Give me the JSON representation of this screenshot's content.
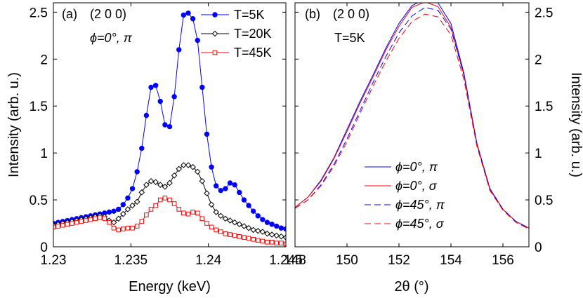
{
  "chart_data": [
    {
      "type": "line",
      "panel_label": "(a)",
      "annotations": [
        "(2 0 0)",
        "ϕ=0°, π"
      ],
      "xlabel": "Energy (keV)",
      "ylabel": "Intensity (arb. u.)",
      "xlim": [
        1.23,
        1.245
      ],
      "ylim": [
        0,
        2.6
      ],
      "xticks": [
        "1.23",
        "1.235",
        "1.24",
        "1.245"
      ],
      "yticks": [
        "0",
        "0.5",
        "1",
        "1.5",
        "2",
        "2.5"
      ],
      "legend_position": "top-right",
      "series": [
        {
          "name": "T=5K",
          "color": "#0000ff",
          "marker": "filled-circle",
          "x": [
            1.23,
            1.2303,
            1.2306,
            1.2309,
            1.2312,
            1.2315,
            1.2318,
            1.2321,
            1.2324,
            1.2327,
            1.233,
            1.2333,
            1.2336,
            1.2339,
            1.2342,
            1.2345,
            1.2348,
            1.2351,
            1.2354,
            1.2357,
            1.236,
            1.2363,
            1.2366,
            1.2369,
            1.2372,
            1.2375,
            1.2378,
            1.2381,
            1.2384,
            1.2387,
            1.239,
            1.2393,
            1.2396,
            1.2399,
            1.2402,
            1.2405,
            1.2408,
            1.2411,
            1.2414,
            1.2417,
            1.242,
            1.2423,
            1.2426,
            1.2429,
            1.2432,
            1.2435,
            1.2438,
            1.2441,
            1.2444,
            1.2447,
            1.245
          ],
          "y": [
            0.25,
            0.26,
            0.27,
            0.28,
            0.29,
            0.3,
            0.31,
            0.32,
            0.33,
            0.34,
            0.35,
            0.36,
            0.37,
            0.38,
            0.4,
            0.45,
            0.52,
            0.62,
            0.8,
            1.05,
            1.4,
            1.7,
            1.72,
            1.55,
            1.3,
            1.28,
            1.6,
            2.1,
            2.47,
            2.49,
            2.43,
            2.2,
            1.7,
            1.2,
            0.85,
            0.65,
            0.6,
            0.62,
            0.68,
            0.66,
            0.58,
            0.5,
            0.44,
            0.38,
            0.33,
            0.29,
            0.26,
            0.24,
            0.22,
            0.2,
            0.19
          ]
        },
        {
          "name": "T=20K",
          "color": "#000000",
          "marker": "open-diamond",
          "x": [
            1.23,
            1.2303,
            1.2306,
            1.2309,
            1.2312,
            1.2315,
            1.2318,
            1.2321,
            1.2324,
            1.2327,
            1.233,
            1.2333,
            1.2336,
            1.2339,
            1.2342,
            1.2345,
            1.2348,
            1.2351,
            1.2354,
            1.2357,
            1.236,
            1.2363,
            1.2366,
            1.2369,
            1.2372,
            1.2375,
            1.2378,
            1.2381,
            1.2384,
            1.2387,
            1.239,
            1.2393,
            1.2396,
            1.2399,
            1.2402,
            1.2405,
            1.2408,
            1.2411,
            1.2414,
            1.2417,
            1.242,
            1.2423,
            1.2426,
            1.2429,
            1.2432,
            1.2435,
            1.2438,
            1.2441,
            1.2444,
            1.2447,
            1.245
          ],
          "y": [
            0.23,
            0.24,
            0.25,
            0.26,
            0.27,
            0.28,
            0.29,
            0.3,
            0.31,
            0.32,
            0.33,
            0.32,
            0.28,
            0.26,
            0.3,
            0.35,
            0.4,
            0.44,
            0.48,
            0.58,
            0.66,
            0.7,
            0.69,
            0.66,
            0.64,
            0.68,
            0.76,
            0.83,
            0.87,
            0.87,
            0.85,
            0.8,
            0.7,
            0.57,
            0.45,
            0.37,
            0.33,
            0.3,
            0.28,
            0.26,
            0.24,
            0.22,
            0.2,
            0.18,
            0.17,
            0.16,
            0.14,
            0.13,
            0.12,
            0.11,
            0.1
          ]
        },
        {
          "name": "T=45K",
          "color": "#ff0000",
          "marker": "open-square",
          "x": [
            1.23,
            1.2303,
            1.2306,
            1.2309,
            1.2312,
            1.2315,
            1.2318,
            1.2321,
            1.2324,
            1.2327,
            1.233,
            1.2333,
            1.2336,
            1.2339,
            1.2342,
            1.2345,
            1.2348,
            1.2351,
            1.2354,
            1.2357,
            1.236,
            1.2363,
            1.2366,
            1.2369,
            1.2372,
            1.2375,
            1.2378,
            1.2381,
            1.2384,
            1.2387,
            1.239,
            1.2393,
            1.2396,
            1.2399,
            1.2402,
            1.2405,
            1.2408,
            1.2411,
            1.2414,
            1.2417,
            1.242,
            1.2423,
            1.2426,
            1.2429,
            1.2432,
            1.2435,
            1.2438,
            1.2441,
            1.2444,
            1.2447,
            1.245
          ],
          "y": [
            0.21,
            0.22,
            0.23,
            0.24,
            0.25,
            0.26,
            0.27,
            0.28,
            0.29,
            0.3,
            0.31,
            0.3,
            0.26,
            0.2,
            0.18,
            0.19,
            0.2,
            0.2,
            0.22,
            0.27,
            0.34,
            0.4,
            0.44,
            0.5,
            0.52,
            0.5,
            0.46,
            0.4,
            0.36,
            0.35,
            0.37,
            0.36,
            0.3,
            0.25,
            0.21,
            0.18,
            0.16,
            0.14,
            0.13,
            0.12,
            0.11,
            0.1,
            0.09,
            0.08,
            0.07,
            0.06,
            0.05,
            0.05,
            0.04,
            0.04,
            0.03
          ]
        }
      ]
    },
    {
      "type": "line",
      "panel_label": "(b)",
      "annotations": [
        "(2 0 0)",
        "T=5K"
      ],
      "xlabel": "2θ (°)",
      "ylabel": "Intensity (arb. u.)",
      "xlim": [
        148,
        157
      ],
      "ylim": [
        0,
        2.6
      ],
      "xticks": [
        "148",
        "150",
        "152",
        "154",
        "156"
      ],
      "yticks": [
        "0",
        "0.5",
        "1",
        "1.5",
        "2",
        "2.5"
      ],
      "yaxis_side": "right",
      "legend_position": "bottom-center",
      "series": [
        {
          "name": "ϕ=0°, π",
          "color": "#0000ff",
          "line_style": "solid",
          "x": [
            148,
            148.5,
            149,
            149.5,
            150,
            150.5,
            151,
            151.5,
            152,
            152.5,
            153,
            153.5,
            154,
            154.5,
            155,
            155.5,
            156,
            156.5,
            157
          ],
          "y": [
            0.42,
            0.53,
            0.71,
            0.95,
            1.25,
            1.55,
            1.83,
            2.12,
            2.38,
            2.57,
            2.64,
            2.6,
            2.38,
            1.85,
            1.1,
            0.62,
            0.4,
            0.27,
            0.2
          ]
        },
        {
          "name": "ϕ=0°, σ",
          "color": "#ff0000",
          "line_style": "solid",
          "x": [
            148,
            148.5,
            149,
            149.5,
            150,
            150.5,
            151,
            151.5,
            152,
            152.5,
            153,
            153.5,
            154,
            154.5,
            155,
            155.5,
            156,
            156.5,
            157
          ],
          "y": [
            0.42,
            0.53,
            0.7,
            0.94,
            1.23,
            1.53,
            1.81,
            2.1,
            2.35,
            2.55,
            2.61,
            2.56,
            2.34,
            1.83,
            1.09,
            0.61,
            0.4,
            0.27,
            0.2
          ]
        },
        {
          "name": "ϕ=45°, π",
          "color": "#0000ff",
          "line_style": "dashed",
          "x": [
            148,
            148.5,
            149,
            149.5,
            150,
            150.5,
            151,
            151.5,
            152,
            152.5,
            153,
            153.5,
            154,
            154.5,
            155,
            155.5,
            156,
            156.5,
            157
          ],
          "y": [
            0.41,
            0.5,
            0.66,
            0.88,
            1.15,
            1.45,
            1.75,
            2.03,
            2.28,
            2.46,
            2.55,
            2.52,
            2.32,
            1.83,
            1.1,
            0.62,
            0.4,
            0.27,
            0.2
          ]
        },
        {
          "name": "ϕ=45°, σ",
          "color": "#ff0000",
          "line_style": "dashed",
          "x": [
            148,
            148.5,
            149,
            149.5,
            150,
            150.5,
            151,
            151.5,
            152,
            152.5,
            153,
            153.5,
            154,
            154.5,
            155,
            155.5,
            156,
            156.5,
            157
          ],
          "y": [
            0.41,
            0.5,
            0.65,
            0.86,
            1.12,
            1.42,
            1.71,
            1.98,
            2.22,
            2.4,
            2.48,
            2.45,
            2.26,
            1.78,
            1.07,
            0.6,
            0.39,
            0.26,
            0.19
          ]
        }
      ]
    }
  ]
}
